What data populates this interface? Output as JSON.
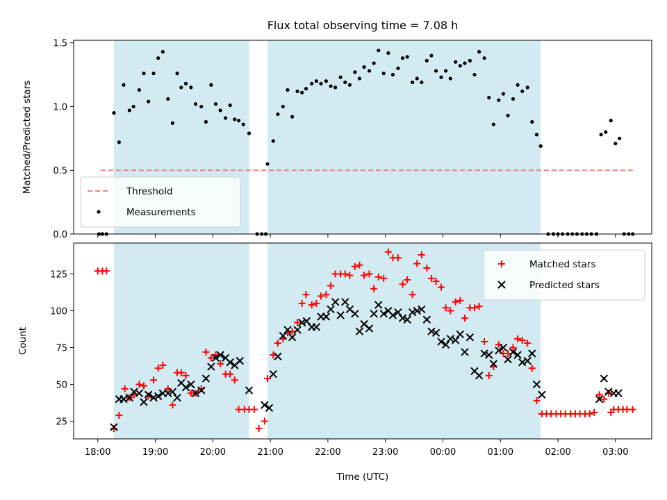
{
  "chart_data": {
    "title": "Flux total observing time = 7.08 h",
    "xlabel": "Time (UTC)",
    "x_ticks": [
      "18:00",
      "19:00",
      "20:00",
      "21:00",
      "22:00",
      "23:00",
      "00:00",
      "01:00",
      "02:00",
      "03:00"
    ],
    "x_unit": "hours since 18:00 UTC",
    "xlim": [
      -0.42,
      9.63
    ],
    "observing_windows_hours": [
      [
        0.28,
        2.63
      ],
      [
        2.95,
        7.7
      ]
    ],
    "window_color": "#add8e6",
    "panels": [
      {
        "type": "scatter",
        "ylabel": "Matched/Predicted stars",
        "ylim": [
          0,
          1.52
        ],
        "y_ticks": [
          0.0,
          0.5,
          1.0,
          1.5
        ],
        "y_tick_labels": [
          "0.0",
          "0.5",
          "1.0",
          "1.5"
        ],
        "legend_position": "lower-left",
        "threshold": {
          "name": "Threshold",
          "value": 0.5,
          "x_range": [
            0.05,
            9.3
          ],
          "color": "#f08080",
          "style": "dashed"
        },
        "series": [
          {
            "name": "Measurements",
            "color": "#000000",
            "marker": "dot",
            "x": [
              0.02,
              0.08,
              0.15,
              0.28,
              0.37,
              0.45,
              0.55,
              0.62,
              0.72,
              0.8,
              0.88,
              0.97,
              1.05,
              1.13,
              1.22,
              1.3,
              1.38,
              1.45,
              1.53,
              1.62,
              1.7,
              1.8,
              1.88,
              1.97,
              2.05,
              2.13,
              2.22,
              2.3,
              2.38,
              2.45,
              2.53,
              2.63,
              2.77,
              2.85,
              2.92,
              2.95,
              3.05,
              3.13,
              3.22,
              3.3,
              3.38,
              3.47,
              3.55,
              3.62,
              3.72,
              3.8,
              3.88,
              3.97,
              4.05,
              4.13,
              4.22,
              4.3,
              4.38,
              4.47,
              4.55,
              4.63,
              4.72,
              4.8,
              4.88,
              4.97,
              5.05,
              5.13,
              5.22,
              5.3,
              5.38,
              5.47,
              5.55,
              5.63,
              5.72,
              5.8,
              5.88,
              5.97,
              6.05,
              6.13,
              6.22,
              6.3,
              6.38,
              6.47,
              6.55,
              6.63,
              6.72,
              6.8,
              6.88,
              6.97,
              7.05,
              7.13,
              7.22,
              7.3,
              7.38,
              7.47,
              7.55,
              7.63,
              7.7,
              7.83,
              7.92,
              8.0,
              8.08,
              8.17,
              8.25,
              8.33,
              8.42,
              8.5,
              8.58,
              8.67,
              8.75,
              8.83,
              8.92,
              9.0,
              9.07,
              9.15,
              9.23,
              9.3
            ],
            "y": [
              0.0,
              0.0,
              0.0,
              0.95,
              0.72,
              1.17,
              0.97,
              1.0,
              1.13,
              1.26,
              1.04,
              1.26,
              1.38,
              1.43,
              1.06,
              0.87,
              1.26,
              1.15,
              1.18,
              1.15,
              1.02,
              1.0,
              0.88,
              1.17,
              1.02,
              0.97,
              0.91,
              1.01,
              0.9,
              0.89,
              0.86,
              0.79,
              0.0,
              0.0,
              0.0,
              0.55,
              0.73,
              0.94,
              1.0,
              1.13,
              0.92,
              1.12,
              1.11,
              1.14,
              1.18,
              1.2,
              1.18,
              1.2,
              1.16,
              1.15,
              1.23,
              1.19,
              1.17,
              1.27,
              1.22,
              1.31,
              1.28,
              1.34,
              1.44,
              1.26,
              1.42,
              1.25,
              1.3,
              1.38,
              1.39,
              1.19,
              1.22,
              1.19,
              1.36,
              1.4,
              1.28,
              1.23,
              1.28,
              1.22,
              1.35,
              1.32,
              1.34,
              1.36,
              1.25,
              1.43,
              1.38,
              1.07,
              0.86,
              1.05,
              1.1,
              0.93,
              1.06,
              1.17,
              1.12,
              1.15,
              0.88,
              0.78,
              0.69,
              0.0,
              0.0,
              0.0,
              0.0,
              0.0,
              0.0,
              0.0,
              0.0,
              0.0,
              0.0,
              0.0,
              0.78,
              0.8,
              0.89,
              0.71,
              0.75,
              0.0,
              0.0,
              0.0
            ]
          }
        ]
      },
      {
        "type": "scatter",
        "ylabel": "Count",
        "ylim": [
          13,
          146
        ],
        "y_ticks": [
          25,
          50,
          75,
          100,
          125
        ],
        "y_tick_labels": [
          "25",
          "50",
          "75",
          "100",
          "125"
        ],
        "legend_position": "top-right",
        "series": [
          {
            "name": "Matched stars",
            "color": "#ff0000",
            "marker": "plus",
            "x": [
              0.0,
              0.08,
              0.15,
              0.28,
              0.37,
              0.47,
              0.55,
              0.63,
              0.72,
              0.8,
              0.88,
              0.97,
              1.05,
              1.13,
              1.22,
              1.3,
              1.38,
              1.45,
              1.53,
              1.62,
              1.7,
              1.8,
              1.88,
              1.97,
              2.05,
              2.13,
              2.22,
              2.3,
              2.38,
              2.45,
              2.55,
              2.63,
              2.72,
              2.8,
              2.9,
              2.95,
              3.05,
              3.13,
              3.22,
              3.3,
              3.38,
              3.47,
              3.55,
              3.62,
              3.72,
              3.8,
              3.88,
              3.97,
              4.05,
              4.13,
              4.22,
              4.3,
              4.38,
              4.47,
              4.55,
              4.63,
              4.72,
              4.8,
              4.88,
              4.97,
              5.05,
              5.13,
              5.22,
              5.3,
              5.38,
              5.47,
              5.55,
              5.63,
              5.72,
              5.8,
              5.88,
              5.97,
              6.05,
              6.13,
              6.22,
              6.3,
              6.38,
              6.47,
              6.55,
              6.63,
              6.72,
              6.8,
              6.88,
              6.97,
              7.05,
              7.13,
              7.22,
              7.3,
              7.38,
              7.47,
              7.55,
              7.63,
              7.72,
              7.8,
              7.88,
              7.97,
              8.05,
              8.13,
              8.22,
              8.3,
              8.38,
              8.47,
              8.55,
              8.63,
              8.72,
              8.8,
              8.88,
              8.92,
              8.97,
              9.05,
              9.13,
              9.2,
              9.3
            ],
            "y": [
              127,
              127,
              127,
              20,
              29,
              47,
              41,
              43,
              50,
              49,
              42,
              53,
              61,
              63,
              47,
              36,
              58,
              58,
              56,
              44,
              44,
              47,
              72,
              68,
              70,
              64,
              57,
              57,
              53,
              33,
              33,
              33,
              33,
              20,
              25,
              54,
              70,
              78,
              81,
              85,
              86,
              92,
              105,
              111,
              104,
              105,
              110,
              111,
              117,
              125,
              125,
              125,
              124,
              130,
              131,
              124,
              125,
              115,
              123,
              122,
              140,
              136,
              136,
              118,
              121,
              111,
              132,
              138,
              129,
              122,
              120,
              116,
              102,
              100,
              106,
              107,
              95,
              102,
              102,
              103,
              79,
              56,
              62,
              77,
              71,
              71,
              75,
              81,
              80,
              78,
              61,
              39,
              30,
              30,
              30,
              30,
              30,
              30,
              30,
              30,
              30,
              30,
              30,
              31,
              43,
              40,
              44,
              31,
              33,
              33,
              33,
              33,
              33
            ]
          },
          {
            "name": "Predicted stars",
            "color": "#000000",
            "marker": "x",
            "x": [
              0.28,
              0.37,
              0.45,
              0.55,
              0.63,
              0.72,
              0.8,
              0.88,
              0.97,
              1.05,
              1.13,
              1.22,
              1.3,
              1.38,
              1.45,
              1.53,
              1.62,
              1.7,
              1.8,
              1.88,
              1.97,
              2.05,
              2.13,
              2.22,
              2.3,
              2.38,
              2.47,
              2.63,
              2.9,
              2.98,
              3.05,
              3.13,
              3.22,
              3.3,
              3.38,
              3.47,
              3.55,
              3.63,
              3.72,
              3.8,
              3.88,
              3.97,
              4.05,
              4.13,
              4.22,
              4.3,
              4.38,
              4.47,
              4.55,
              4.63,
              4.72,
              4.8,
              4.88,
              4.97,
              5.05,
              5.13,
              5.22,
              5.3,
              5.38,
              5.47,
              5.55,
              5.63,
              5.72,
              5.8,
              5.88,
              5.97,
              6.05,
              6.13,
              6.22,
              6.3,
              6.38,
              6.47,
              6.55,
              6.63,
              6.72,
              6.8,
              6.88,
              6.97,
              7.05,
              7.13,
              7.22,
              7.3,
              7.38,
              7.47,
              7.55,
              7.63,
              7.72,
              8.72,
              8.8,
              8.88,
              8.97,
              9.05
            ],
            "y": [
              21,
              40,
              40,
              41,
              45,
              44,
              38,
              43,
              41,
              42,
              44,
              44,
              45,
              41,
              51,
              48,
              50,
              44,
              46,
              54,
              62,
              68,
              70,
              68,
              65,
              63,
              66,
              46,
              36,
              34,
              57,
              69,
              83,
              87,
              82,
              87,
              92,
              93,
              89,
              89,
              96,
              96,
              101,
              106,
              97,
              106,
              101,
              98,
              86,
              91,
              88,
              98,
              104,
              98,
              100,
              97,
              99,
              95,
              94,
              99,
              100,
              101,
              94,
              86,
              85,
              79,
              77,
              81,
              80,
              84,
              72,
              82,
              59,
              56,
              71,
              70,
              64,
              73,
              75,
              67,
              72,
              70,
              65,
              66,
              71,
              50,
              43,
              40,
              54,
              45,
              44,
              44
            ]
          }
        ]
      }
    ]
  }
}
